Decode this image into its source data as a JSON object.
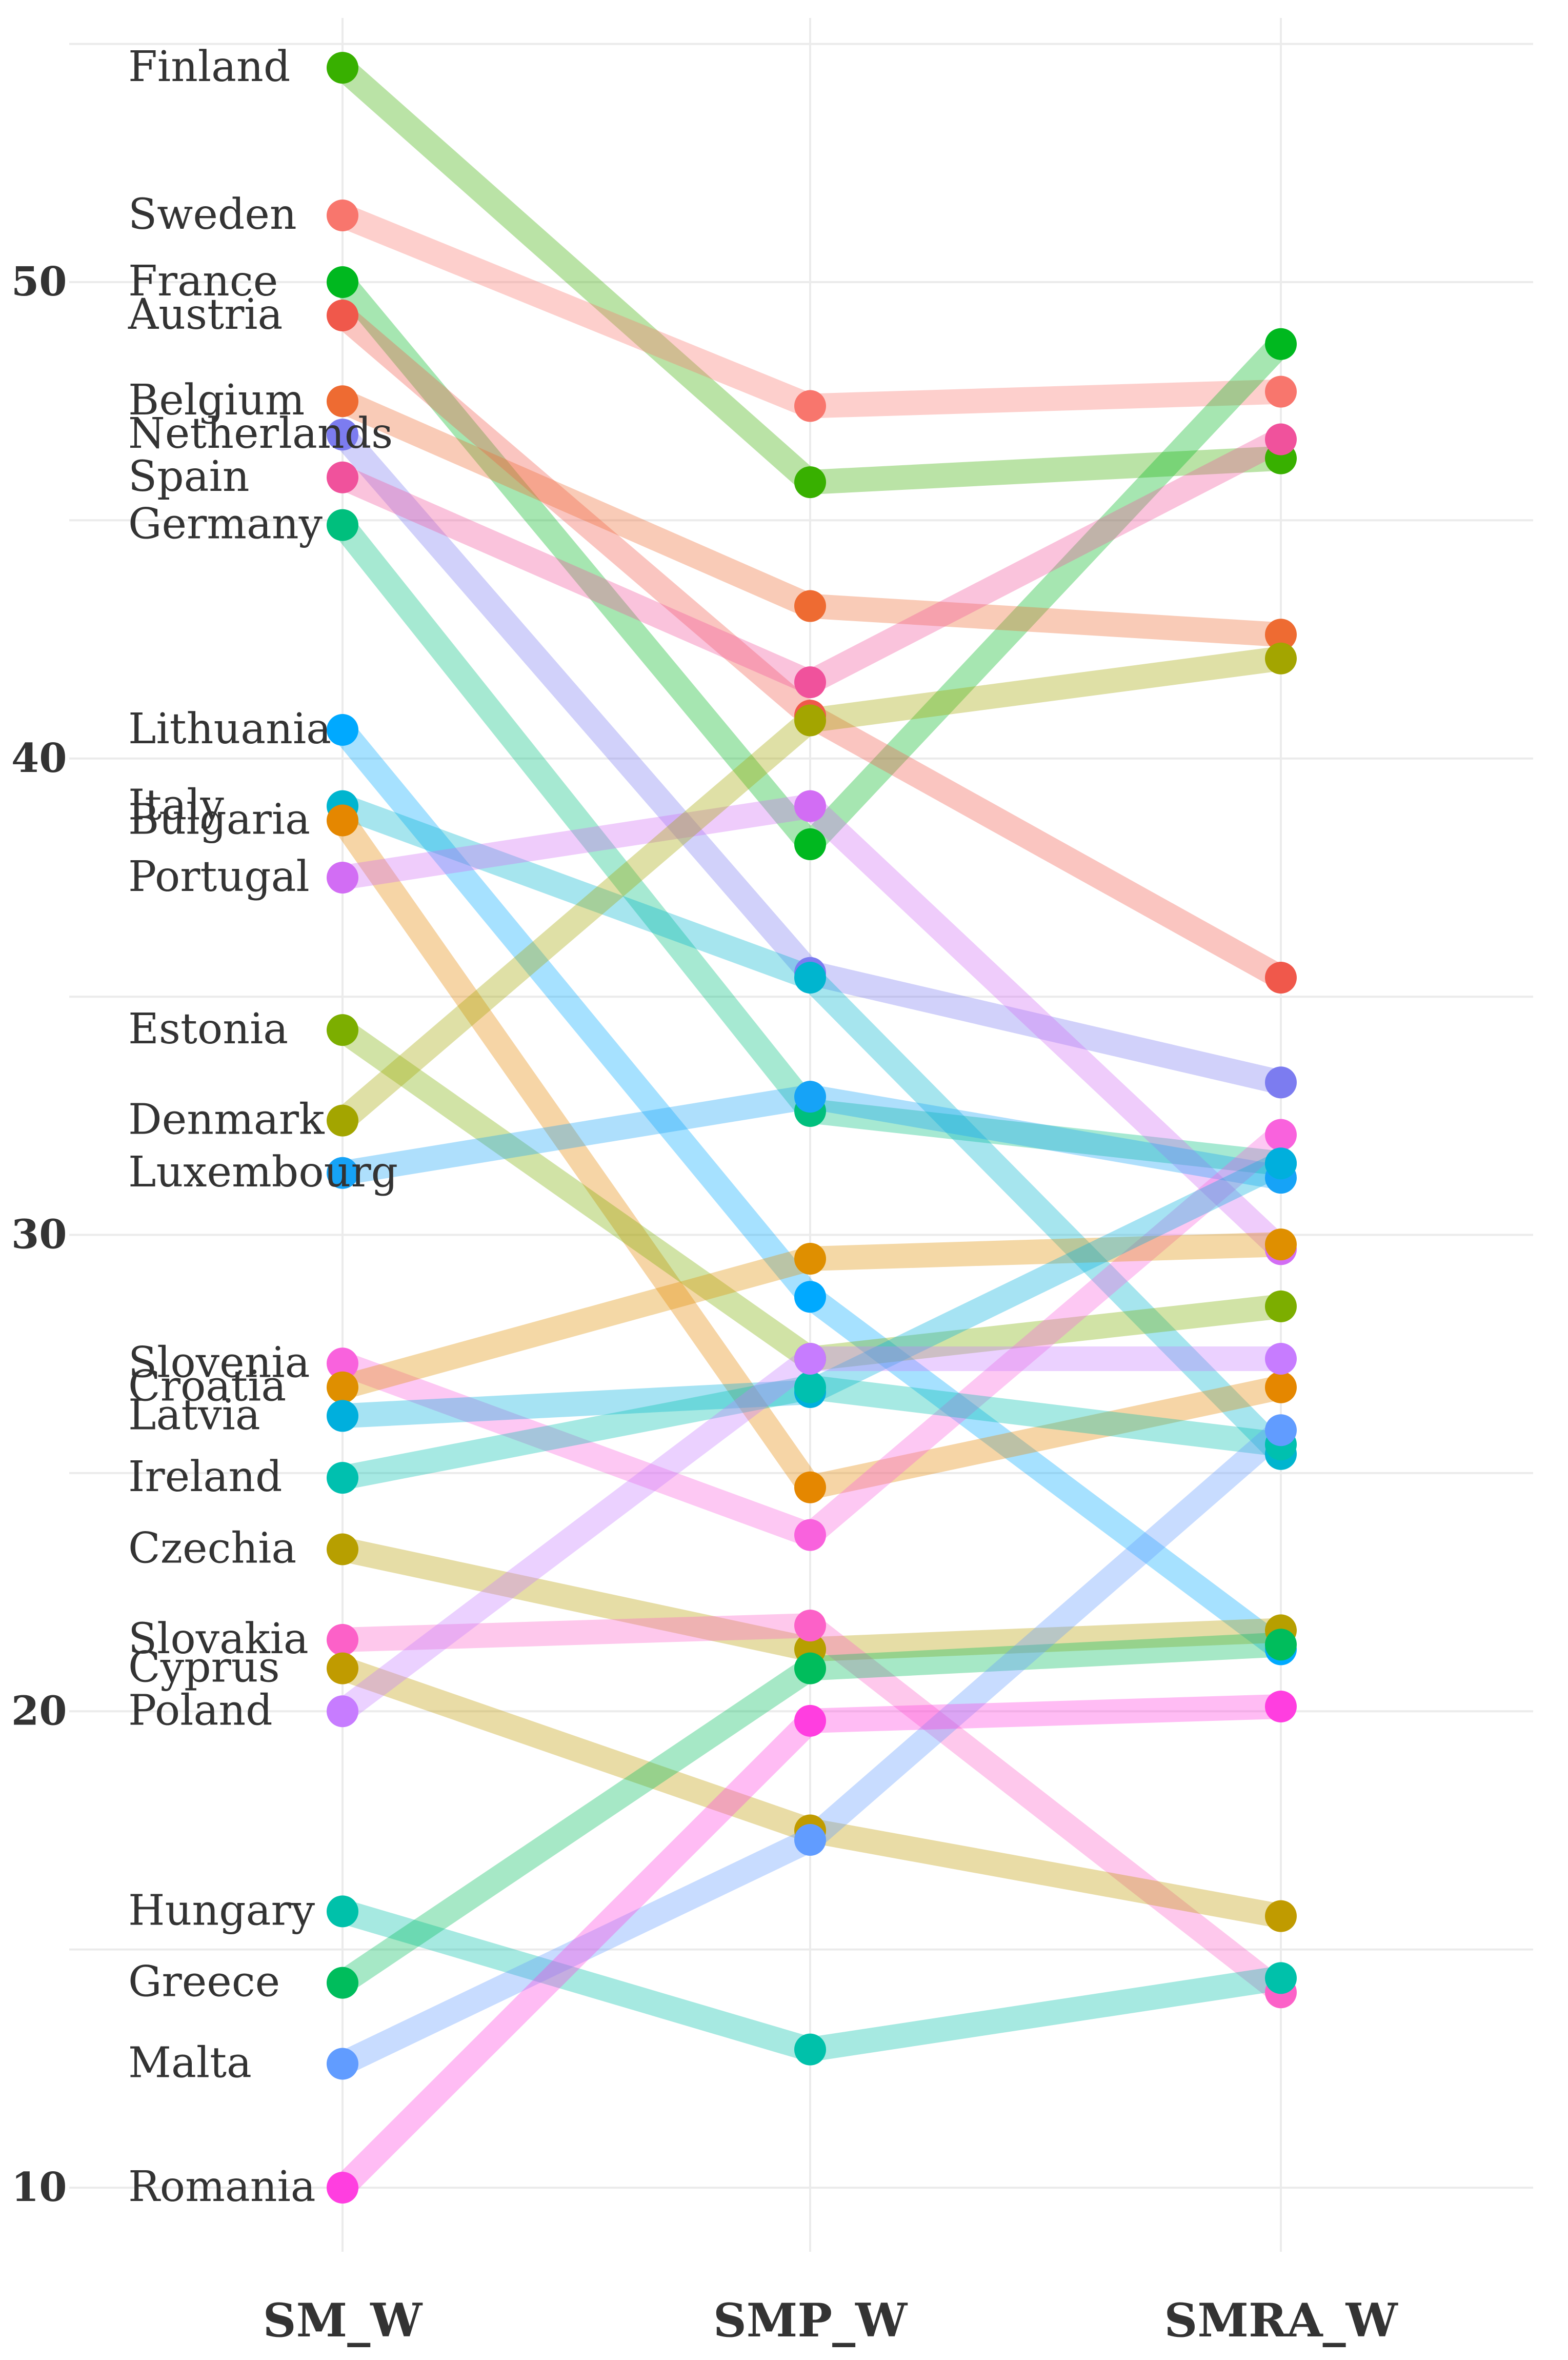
{
  "chart_data": {
    "type": "line",
    "subtype": "slope",
    "title": "",
    "xlabel": "",
    "ylabel": "",
    "categories": [
      "SM_W",
      "SMP_W",
      "SMRA_W"
    ],
    "ylim": [
      7.5,
      55
    ],
    "yticks": [
      10,
      20,
      30,
      40,
      50
    ],
    "grid": true,
    "legend": "none",
    "series": [
      {
        "name": "Finland",
        "color": "#38b000",
        "values": [
          54.5,
          45.8,
          46.3
        ]
      },
      {
        "name": "Sweden",
        "color": "#f8766d",
        "values": [
          51.4,
          47.4,
          47.7
        ]
      },
      {
        "name": "France",
        "color": "#00b81f",
        "values": [
          50.0,
          38.2,
          48.7
        ]
      },
      {
        "name": "Austria",
        "color": "#f0584b",
        "values": [
          49.3,
          40.9,
          35.4
        ]
      },
      {
        "name": "Belgium",
        "color": "#ee6b32",
        "values": [
          47.5,
          43.2,
          42.6
        ]
      },
      {
        "name": "Netherlands",
        "color": "#7c7cf0",
        "values": [
          46.8,
          35.5,
          33.2
        ]
      },
      {
        "name": "Spain",
        "color": "#f0529c",
        "values": [
          45.9,
          41.6,
          46.7
        ]
      },
      {
        "name": "Germany",
        "color": "#00bf7d",
        "values": [
          44.9,
          32.6,
          31.5
        ]
      },
      {
        "name": "Lithuania",
        "color": "#00a9ff",
        "values": [
          40.6,
          28.7,
          21.3
        ]
      },
      {
        "name": "Italy",
        "color": "#00b5cf",
        "values": [
          39.0,
          35.4,
          25.4
        ]
      },
      {
        "name": "Bulgaria",
        "color": "#e58700",
        "values": [
          38.7,
          24.7,
          26.8
        ]
      },
      {
        "name": "Portugal",
        "color": "#d26df4",
        "values": [
          37.5,
          39.0,
          29.7
        ]
      },
      {
        "name": "Estonia",
        "color": "#7cae00",
        "values": [
          34.3,
          27.4,
          28.5
        ]
      },
      {
        "name": "Denmark",
        "color": "#a3a500",
        "values": [
          32.4,
          40.8,
          42.1
        ]
      },
      {
        "name": "Luxembourg",
        "color": "#16a3f7",
        "values": [
          31.3,
          32.9,
          31.2
        ]
      },
      {
        "name": "Slovenia",
        "color": "#f962dd",
        "values": [
          27.3,
          23.7,
          32.1
        ]
      },
      {
        "name": "Croatia",
        "color": "#df8f00",
        "values": [
          26.8,
          29.5,
          29.8
        ]
      },
      {
        "name": "Latvia",
        "color": "#00afdd",
        "values": [
          26.2,
          26.7,
          31.5
        ]
      },
      {
        "name": "Ireland",
        "color": "#00c0af",
        "values": [
          24.9,
          26.8,
          25.6
        ]
      },
      {
        "name": "Czechia",
        "color": "#b79f00",
        "values": [
          23.4,
          21.3,
          21.7
        ]
      },
      {
        "name": "Slovakia",
        "color": "#fc61c8",
        "values": [
          21.5,
          21.8,
          14.1
        ]
      },
      {
        "name": "Cyprus",
        "color": "#c09b00",
        "values": [
          20.9,
          17.5,
          15.7
        ]
      },
      {
        "name": "Poland",
        "color": "#c77cff",
        "values": [
          20.0,
          27.4,
          27.4
        ]
      },
      {
        "name": "Hungary",
        "color": "#00c1aa",
        "values": [
          15.8,
          12.9,
          14.4
        ]
      },
      {
        "name": "Greece",
        "color": "#00bd5c",
        "values": [
          14.3,
          20.9,
          21.4
        ]
      },
      {
        "name": "Malta",
        "color": "#619cff",
        "values": [
          12.6,
          17.3,
          25.9
        ]
      },
      {
        "name": "Romania",
        "color": "#ff3ee0",
        "values": [
          10.0,
          19.8,
          20.1
        ]
      }
    ]
  }
}
